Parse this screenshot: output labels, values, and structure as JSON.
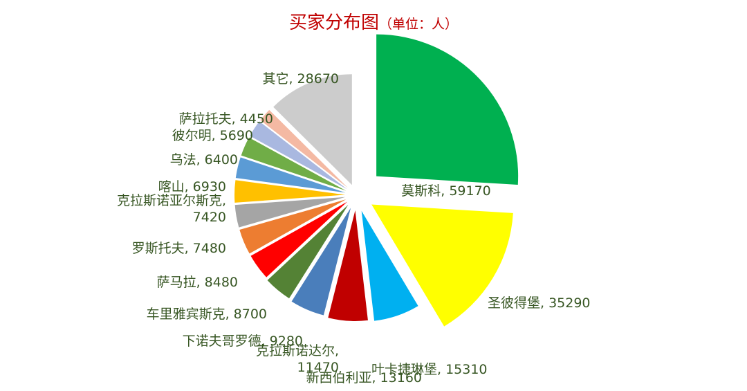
{
  "chart_data": {
    "type": "pie",
    "title": "买家分布图",
    "subtitle": "（单位：人）",
    "slices": [
      {
        "label": "莫斯科",
        "value": 59170,
        "color": "#00b050"
      },
      {
        "label": "圣彼得堡",
        "value": 35290,
        "color": "#ffff00"
      },
      {
        "label": "叶卡捷琳堡",
        "value": 15310,
        "color": "#00b0f0"
      },
      {
        "label": "新西伯利亚",
        "value": 13160,
        "color": "#c00000"
      },
      {
        "label": "克拉斯诺达尔",
        "value": 11470,
        "color": "#4a7ebb"
      },
      {
        "label": "下诺夫哥罗德",
        "value": 9280,
        "color": "#548235"
      },
      {
        "label": "车里雅宾斯克",
        "value": 8700,
        "color": "#ff0000"
      },
      {
        "label": "萨马拉",
        "value": 8480,
        "color": "#ed7d31"
      },
      {
        "label": "罗斯托夫",
        "value": 7480,
        "color": "#a5a5a5"
      },
      {
        "label": "克拉斯诺亚尔斯克",
        "value": 7420,
        "color": "#ffc000"
      },
      {
        "label": "喀山",
        "value": 6930,
        "color": "#5b9bd5"
      },
      {
        "label": "乌法",
        "value": 6400,
        "color": "#70ad47"
      },
      {
        "label": "彼尔明",
        "value": 5690,
        "color": "#a9b8e0"
      },
      {
        "label": "萨拉托夫",
        "value": 4450,
        "color": "#f4b9a3"
      },
      {
        "label": "其它",
        "value": 28670,
        "color": "#cccccc"
      }
    ]
  }
}
